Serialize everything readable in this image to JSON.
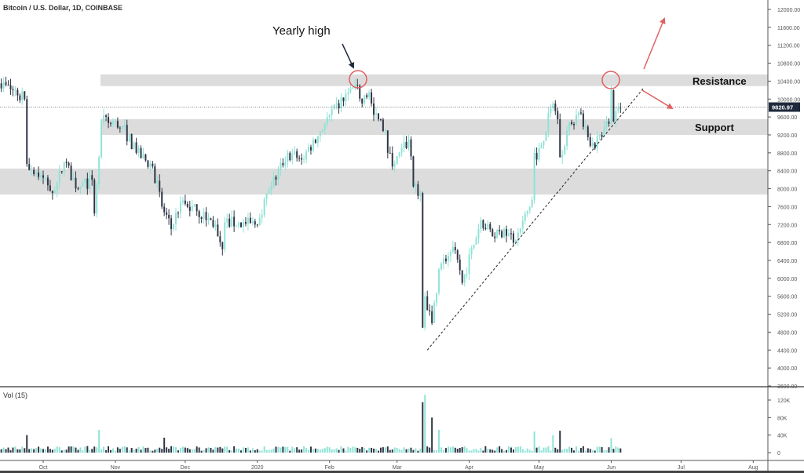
{
  "header": {
    "title": "Bitcoin / U.S. Dollar, 1D, COINBASE"
  },
  "volume_panel": {
    "label": "Vol (15)"
  },
  "colors": {
    "up": "#8fe3d6",
    "down": "#2f3545",
    "zone": "#dcdcdc",
    "annotation_red": "#e06060",
    "price_tag": "#1f2a3c"
  },
  "chart_data": {
    "type": "candlestick",
    "title": "Bitcoin / U.S. Dollar, 1D, COINBASE",
    "ylim": [
      3600,
      12000
    ],
    "y_ticks": [
      "12000.00",
      "11600.00",
      "11200.00",
      "10800.00",
      "10400.00",
      "10000.00",
      "9600.00",
      "9200.00",
      "8800.00",
      "8400.00",
      "8000.00",
      "7600.00",
      "7200.00",
      "6800.00",
      "6400.00",
      "6000.00",
      "5600.00",
      "5200.00",
      "4800.00",
      "4400.00",
      "4000.00",
      "3600.00"
    ],
    "x_ticks": [
      "Oct",
      "Nov",
      "Dec",
      "2020",
      "Feb",
      "Mar",
      "Apr",
      "May",
      "Jun",
      "Jul",
      "Aug"
    ],
    "last_price": "9820.97",
    "close_keypoints": [
      [
        "2019-09-12",
        10350
      ],
      [
        "2019-09-18",
        10200
      ],
      [
        "2019-09-23",
        10000
      ],
      [
        "2019-09-24",
        8550
      ],
      [
        "2019-09-30",
        8300
      ],
      [
        "2019-10-06",
        7950
      ],
      [
        "2019-10-10",
        8600
      ],
      [
        "2019-10-16",
        8000
      ],
      [
        "2019-10-22",
        8200
      ],
      [
        "2019-10-23",
        7450
      ],
      [
        "2019-10-25",
        8700
      ],
      [
        "2019-10-26",
        9500
      ],
      [
        "2019-11-04",
        9400
      ],
      [
        "2019-11-10",
        8800
      ],
      [
        "2019-11-17",
        8500
      ],
      [
        "2019-11-21",
        7600
      ],
      [
        "2019-11-25",
        7100
      ],
      [
        "2019-11-29",
        7700
      ],
      [
        "2019-12-06",
        7500
      ],
      [
        "2019-12-14",
        7200
      ],
      [
        "2019-12-17",
        6650
      ],
      [
        "2019-12-18",
        7250
      ],
      [
        "2019-12-31",
        7200
      ],
      [
        "2020-01-07",
        8050
      ],
      [
        "2020-01-14",
        8800
      ],
      [
        "2020-01-20",
        8650
      ],
      [
        "2020-01-30",
        9450
      ],
      [
        "2020-02-09",
        10150
      ],
      [
        "2020-02-13",
        10300
      ],
      [
        "2020-02-15",
        9900
      ],
      [
        "2020-02-18",
        10150
      ],
      [
        "2020-02-20",
        9650
      ],
      [
        "2020-02-25",
        9300
      ],
      [
        "2020-02-26",
        8800
      ],
      [
        "2020-02-29",
        8550
      ],
      [
        "2020-03-06",
        9100
      ],
      [
        "2020-03-08",
        8050
      ],
      [
        "2020-03-11",
        7900
      ],
      [
        "2020-03-12",
        4900
      ],
      [
        "2020-03-13",
        5600
      ],
      [
        "2020-03-16",
        5000
      ],
      [
        "2020-03-19",
        6200
      ],
      [
        "2020-03-25",
        6700
      ],
      [
        "2020-03-29",
        5900
      ],
      [
        "2020-04-06",
        7300
      ],
      [
        "2020-04-12",
        6900
      ],
      [
        "2020-04-16",
        7100
      ],
      [
        "2020-04-21",
        6850
      ],
      [
        "2020-04-28",
        7750
      ],
      [
        "2020-04-29",
        8800
      ],
      [
        "2020-04-30",
        8650
      ],
      [
        "2020-05-07",
        9900
      ],
      [
        "2020-05-09",
        9550
      ],
      [
        "2020-05-10",
        8700
      ],
      [
        "2020-05-13",
        9300
      ],
      [
        "2020-05-18",
        9700
      ],
      [
        "2020-05-22",
        9150
      ],
      [
        "2020-05-25",
        8900
      ],
      [
        "2020-05-27",
        9200
      ],
      [
        "2020-05-31",
        9450
      ],
      [
        "2020-06-01",
        10200
      ],
      [
        "2020-06-02",
        9500
      ],
      [
        "2020-06-05",
        9800
      ]
    ],
    "volume": {
      "ylim": [
        0,
        130
      ],
      "unit": "K",
      "y_ticks": [
        "120K",
        "80K",
        "40K",
        "0"
      ],
      "typical": 10,
      "spikes": [
        [
          "2019-09-24",
          40
        ],
        [
          "2019-10-25",
          52
        ],
        [
          "2019-11-22",
          34
        ],
        [
          "2020-03-12",
          115
        ],
        [
          "2020-03-13",
          132
        ],
        [
          "2020-03-16",
          80
        ],
        [
          "2020-03-19",
          52
        ],
        [
          "2020-04-29",
          48
        ],
        [
          "2020-05-07",
          40
        ],
        [
          "2020-05-10",
          50
        ],
        [
          "2020-06-01",
          33
        ]
      ]
    },
    "zones": [
      {
        "name": "Resistance",
        "from": 10290,
        "to": 10550
      },
      {
        "name": "Support",
        "from": 9200,
        "to": 9550
      },
      {
        "name": "",
        "from": 7870,
        "to": 8450
      }
    ],
    "trendline": {
      "from": [
        "2020-03-14",
        4400
      ],
      "to": [
        "2020-06-15",
        10250
      ]
    },
    "annotations": {
      "yearly_high": "Yearly high",
      "resistance": "Resistance",
      "support": "Support"
    }
  }
}
